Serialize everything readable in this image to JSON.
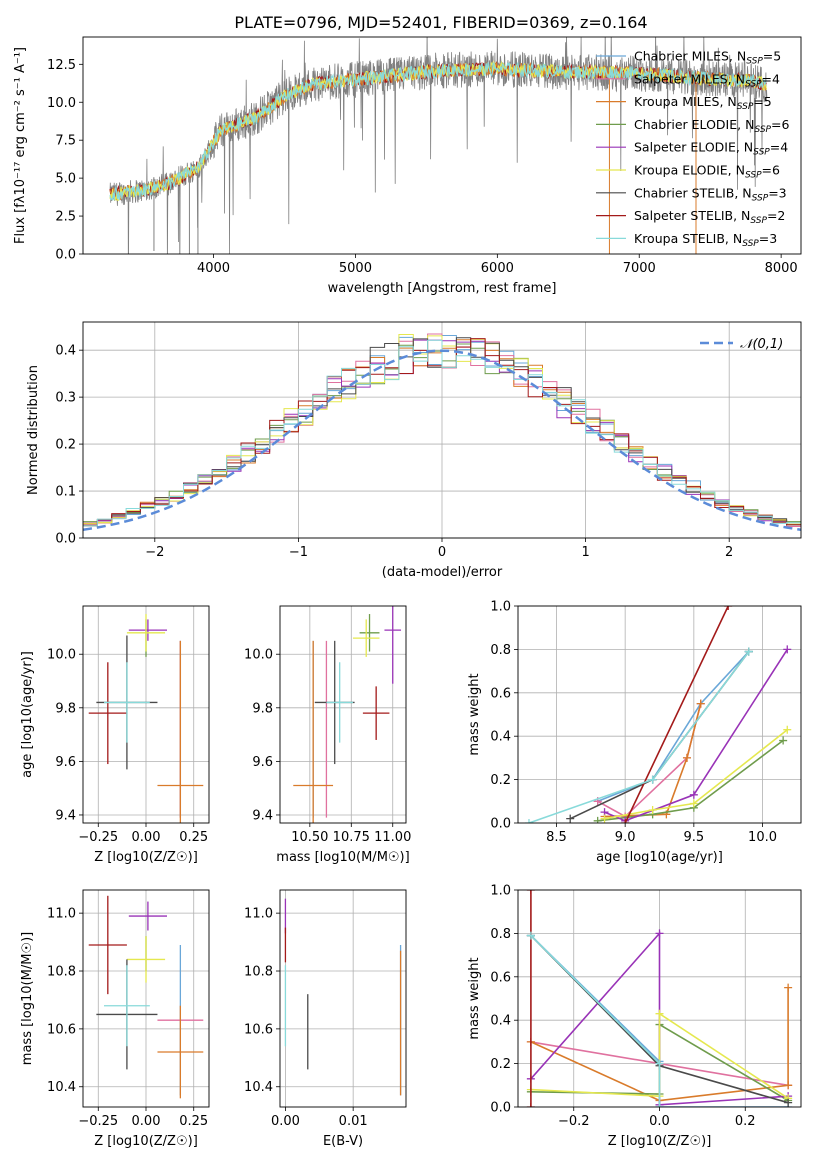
{
  "figure": {
    "title": "PLATE=0796, MJD=52401, FIBERID=0369, z=0.164"
  },
  "models": [
    {
      "key": "cm",
      "name": "Chabrier MILES",
      "nssp": "5",
      "color": "#6aa7d8"
    },
    {
      "key": "sm",
      "name": "Salpeter MILES",
      "nssp": "4",
      "color": "#e0719f"
    },
    {
      "key": "km",
      "name": "Kroupa MILES",
      "nssp": "5",
      "color": "#d97b2b"
    },
    {
      "key": "ce",
      "name": "Chabrier ELODIE",
      "nssp": "6",
      "color": "#6f9c4c"
    },
    {
      "key": "se",
      "name": "Salpeter ELODIE",
      "nssp": "4",
      "color": "#9933b7"
    },
    {
      "key": "ke",
      "name": "Kroupa ELODIE",
      "nssp": "6",
      "color": "#e5e84f"
    },
    {
      "key": "cs",
      "name": "Chabrier STELIB",
      "nssp": "3",
      "color": "#4a4a4a"
    },
    {
      "key": "ss",
      "name": "Salpeter STELIB",
      "nssp": "2",
      "color": "#a31a1a"
    },
    {
      "key": "ks",
      "name": "Kroupa STELIB",
      "nssp": "3",
      "color": "#88dada"
    }
  ],
  "legend_nssp_label": "N",
  "legend_nssp_sub": "SSP",
  "chart_data": [
    {
      "id": "spectrum",
      "type": "line",
      "xlabel": "wavelength [Angstrom, rest frame]",
      "ylabel": "Flux [f_λ 10^-17 erg cm^-2 s^-1 A^-1]",
      "xlim": [
        3080,
        8140
      ],
      "ylim": [
        0,
        14.3
      ],
      "xticks": [
        4000,
        5000,
        6000,
        7000,
        8000
      ],
      "yticks": [
        0.0,
        2.5,
        5.0,
        7.5,
        10.0,
        12.5
      ],
      "grid": false,
      "legend": "right",
      "continuum_x": [
        3270,
        3500,
        3700,
        3900,
        4050,
        4300,
        4500,
        4700,
        5000,
        5300,
        5600,
        6000,
        6500,
        7000,
        7400,
        7800,
        7900
      ],
      "continuum_y": [
        3.9,
        4.2,
        4.7,
        5.8,
        8.1,
        9.0,
        10.4,
        11.2,
        11.5,
        11.8,
        12.1,
        12.2,
        12.0,
        11.9,
        11.6,
        11.4,
        11.1
      ]
    },
    {
      "id": "residuals",
      "type": "line",
      "xlabel": "(data-model)/error",
      "ylabel": "Normed distribution",
      "xlim": [
        -2.5,
        2.5
      ],
      "ylim": [
        0,
        0.46
      ],
      "xticks": [
        -2,
        -1,
        0,
        1,
        2
      ],
      "yticks": [
        0.0,
        0.1,
        0.2,
        0.3,
        0.4
      ],
      "grid": true,
      "legend": "upper right",
      "gauss_label": "𝒩(0,1)",
      "bin_width": 0.1
    },
    {
      "id": "age_vs_Z",
      "type": "scatter",
      "xlabel": "Z [log10(Z/Z☉)]",
      "ylabel": "age  [log10(age/yr)]",
      "xlim": [
        -0.33,
        0.33
      ],
      "ylim": [
        9.37,
        10.18
      ],
      "xticks": [
        -0.25,
        0.0,
        0.25
      ],
      "xticklabels": [
        "−0.25",
        "0.00",
        "0.25"
      ],
      "yticks": [
        9.4,
        9.6,
        9.8,
        10.0
      ],
      "yticklabels": [
        "9.4",
        "9.6",
        "9.8",
        "10.0"
      ],
      "grid": true,
      "points": [
        {
          "m": "cm",
          "x": 0.18,
          "y": 9.72,
          "xe": 0.0,
          "ye": 0.33
        },
        {
          "m": "sm",
          "x": 0.18,
          "y": 9.72,
          "xe": 0.0,
          "ye": 0.33
        },
        {
          "m": "km",
          "x": 0.18,
          "y": 9.51,
          "xe": 0.12,
          "ye": 0.54
        },
        {
          "m": "ce",
          "x": 0.0,
          "y": 10.06,
          "xe": 0.0,
          "ye": 0.07
        },
        {
          "m": "se",
          "x": 0.01,
          "y": 10.09,
          "xe": 0.1,
          "ye": 0.04
        },
        {
          "m": "ke",
          "x": 0.0,
          "y": 10.08,
          "xe": 0.1,
          "ye": 0.07
        },
        {
          "m": "cs",
          "x": -0.1,
          "y": 9.82,
          "xe": 0.16,
          "ye": 0.25
        },
        {
          "m": "ss",
          "x": -0.2,
          "y": 9.78,
          "xe": 0.1,
          "ye": 0.19
        },
        {
          "m": "ks",
          "x": -0.1,
          "y": 9.82,
          "xe": 0.12,
          "ye": 0.15
        }
      ]
    },
    {
      "id": "age_vs_mass",
      "type": "scatter",
      "xlabel": "mass [log10(M/M☉)]",
      "xlim": [
        10.32,
        11.08
      ],
      "ylim": [
        9.37,
        10.18
      ],
      "xticks": [
        10.5,
        10.75,
        11.0
      ],
      "xticklabels": [
        "10.50",
        "10.75",
        "11.00"
      ],
      "yticks": [
        9.4,
        9.6,
        9.8,
        10.0
      ],
      "yticklabels": [
        "9.4",
        "9.6",
        "9.8",
        "10.0"
      ],
      "grid": true,
      "points": [
        {
          "m": "cm",
          "x": 10.52,
          "y": 9.72,
          "xe": 0.0,
          "ye": 0.33
        },
        {
          "m": "sm",
          "x": 10.6,
          "y": 9.72,
          "xe": 0.0,
          "ye": 0.33
        },
        {
          "m": "km",
          "x": 10.52,
          "y": 9.51,
          "xe": 0.12,
          "ye": 0.54
        },
        {
          "m": "ce",
          "x": 10.86,
          "y": 10.08,
          "xe": 0.06,
          "ye": 0.07
        },
        {
          "m": "se",
          "x": 11.0,
          "y": 10.09,
          "xe": 0.05,
          "ye": 0.2
        },
        {
          "m": "ke",
          "x": 10.84,
          "y": 10.06,
          "xe": 0.08,
          "ye": 0.07
        },
        {
          "m": "cs",
          "x": 10.65,
          "y": 9.82,
          "xe": 0.12,
          "ye": 0.23
        },
        {
          "m": "ss",
          "x": 10.9,
          "y": 9.78,
          "xe": 0.08,
          "ye": 0.1
        },
        {
          "m": "ks",
          "x": 10.68,
          "y": 9.82,
          "xe": 0.08,
          "ye": 0.15
        }
      ]
    },
    {
      "id": "weight_vs_age",
      "type": "line",
      "xlabel": "age  [log10(age/yr)]",
      "ylabel": "mass weight",
      "xlim": [
        8.22,
        10.28
      ],
      "ylim": [
        0,
        1.0
      ],
      "xticks": [
        8.5,
        9.0,
        9.5,
        10.0
      ],
      "xticklabels": [
        "8.5",
        "9.0",
        "9.5",
        "10.0"
      ],
      "yticks": [
        0.0,
        0.2,
        0.4,
        0.6,
        0.8,
        1.0
      ],
      "yticklabels": [
        "0.0",
        "0.2",
        "0.4",
        "0.6",
        "0.8",
        "1.0"
      ],
      "grid": true,
      "series": [
        {
          "m": "cm",
          "x": [
            8.8,
            9.2,
            9.55,
            9.9
          ],
          "y": [
            0.1,
            0.2,
            0.55,
            0.79
          ]
        },
        {
          "m": "sm",
          "x": [
            8.8,
            9.0,
            9.45,
            9.55
          ],
          "y": [
            0.1,
            0.03,
            0.3,
            0.55
          ]
        },
        {
          "m": "km",
          "x": [
            8.85,
            9.3,
            9.45,
            9.55
          ],
          "y": [
            0.03,
            0.04,
            0.3,
            0.55
          ]
        },
        {
          "m": "ce",
          "x": [
            8.8,
            9.2,
            9.5,
            10.15
          ],
          "y": [
            0.01,
            0.04,
            0.07,
            0.38
          ]
        },
        {
          "m": "se",
          "x": [
            8.85,
            9.0,
            9.5,
            10.18
          ],
          "y": [
            0.05,
            0.01,
            0.13,
            0.8
          ]
        },
        {
          "m": "ke",
          "x": [
            8.85,
            9.2,
            9.5,
            10.18
          ],
          "y": [
            0.02,
            0.06,
            0.09,
            0.43
          ]
        },
        {
          "m": "cs",
          "x": [
            8.6,
            9.2,
            9.9
          ],
          "y": [
            0.02,
            0.2,
            0.79
          ]
        },
        {
          "m": "ss",
          "x": [
            9.0,
            9.75
          ],
          "y": [
            0.0,
            1.0
          ]
        },
        {
          "m": "ks",
          "x": [
            8.3,
            9.2,
            9.9
          ],
          "y": [
            0.0,
            0.2,
            0.79
          ]
        }
      ]
    },
    {
      "id": "mass_vs_Z",
      "type": "scatter",
      "xlabel": "Z [log10(Z/Z☉)]",
      "ylabel": "mass [log10(M/M☉)]",
      "xlim": [
        -0.33,
        0.33
      ],
      "ylim": [
        10.33,
        11.08
      ],
      "xticks": [
        -0.25,
        0.0,
        0.25
      ],
      "xticklabels": [
        "−0.25",
        "0.00",
        "0.25"
      ],
      "yticks": [
        10.4,
        10.6,
        10.8,
        11.0
      ],
      "yticklabels": [
        "10.4",
        "10.6",
        "10.8",
        "11.0"
      ],
      "grid": true,
      "points": [
        {
          "m": "cm",
          "x": 0.18,
          "y": 10.63,
          "xe": 0.0,
          "ye": 0.26
        },
        {
          "m": "sm",
          "x": 0.18,
          "y": 10.63,
          "xe": 0.12,
          "ye": 0.0
        },
        {
          "m": "km",
          "x": 0.18,
          "y": 10.52,
          "xe": 0.12,
          "ye": 0.16
        },
        {
          "m": "ce",
          "x": 0.0,
          "y": 10.86,
          "xe": 0.0,
          "ye": 0.06
        },
        {
          "m": "se",
          "x": 0.01,
          "y": 10.99,
          "xe": 0.1,
          "ye": 0.05
        },
        {
          "m": "ke",
          "x": 0.0,
          "y": 10.84,
          "xe": 0.1,
          "ye": 0.08
        },
        {
          "m": "cs",
          "x": -0.1,
          "y": 10.65,
          "xe": 0.16,
          "ye": 0.19
        },
        {
          "m": "ss",
          "x": -0.2,
          "y": 10.89,
          "xe": 0.1,
          "ye": 0.17
        },
        {
          "m": "ks",
          "x": -0.1,
          "y": 10.68,
          "xe": 0.12,
          "ye": 0.14
        }
      ]
    },
    {
      "id": "mass_vs_ebv",
      "type": "scatter",
      "xlabel": "E(B-V)",
      "xlim": [
        -0.0008,
        0.0178
      ],
      "ylim": [
        10.33,
        11.08
      ],
      "xticks": [
        0.0,
        0.01
      ],
      "xticklabels": [
        "0.00",
        "0.01"
      ],
      "yticks": [
        10.4,
        10.6,
        10.8,
        11.0
      ],
      "yticklabels": [
        "10.4",
        "10.6",
        "10.8",
        "11.0"
      ],
      "grid": true,
      "points": [
        {
          "m": "cm",
          "x": 0.017,
          "y": 10.63,
          "xe": 0.0,
          "ye": 0.26
        },
        {
          "m": "km",
          "x": 0.017,
          "y": 10.62,
          "xe": 0.0,
          "ye": 0.25
        },
        {
          "m": "se",
          "x": 0.0,
          "y": 10.99,
          "xe": 0.0,
          "ye": 0.06
        },
        {
          "m": "ss",
          "x": 0.0,
          "y": 10.89,
          "xe": 0.0,
          "ye": 0.06
        },
        {
          "m": "ks",
          "x": 0.0,
          "y": 10.68,
          "xe": 0.0,
          "ye": 0.14
        },
        {
          "m": "cs",
          "x": 0.0033,
          "y": 10.59,
          "xe": 0.0,
          "ye": 0.13
        }
      ]
    },
    {
      "id": "weight_vs_Z",
      "type": "line",
      "xlabel": "Z [log10(Z/Z☉)]",
      "ylabel": "mass weight",
      "xlim": [
        -0.33,
        0.33
      ],
      "ylim": [
        0,
        1.0
      ],
      "xticks": [
        -0.2,
        0.0,
        0.2
      ],
      "xticklabels": [
        "−0.2",
        "0.0",
        "0.2"
      ],
      "yticks": [
        0.0,
        0.2,
        0.4,
        0.6,
        0.8,
        1.0
      ],
      "yticklabels": [
        "0.0",
        "0.2",
        "0.4",
        "0.6",
        "0.8",
        "1.0"
      ],
      "grid": true,
      "series": [
        {
          "m": "cm",
          "x": [
            -0.3,
            0.0,
            0.0,
            0.3
          ],
          "y": [
            0.79,
            0.21,
            0.0,
            0.0
          ]
        },
        {
          "m": "sm",
          "x": [
            -0.3,
            0.0,
            0.3
          ],
          "y": [
            0.3,
            0.2,
            0.1
          ]
        },
        {
          "m": "km",
          "x": [
            -0.3,
            0.0,
            0.3,
            0.3
          ],
          "y": [
            0.3,
            0.03,
            0.1,
            0.55
          ]
        },
        {
          "m": "ce",
          "x": [
            -0.3,
            0.0,
            0.0,
            0.3
          ],
          "y": [
            0.07,
            0.06,
            0.38,
            0.03
          ]
        },
        {
          "m": "se",
          "x": [
            -0.3,
            0.0,
            0.0,
            0.3
          ],
          "y": [
            0.13,
            0.8,
            0.01,
            0.05
          ]
        },
        {
          "m": "ke",
          "x": [
            -0.3,
            0.0,
            0.0,
            0.3
          ],
          "y": [
            0.08,
            0.05,
            0.43,
            0.04
          ]
        },
        {
          "m": "cs",
          "x": [
            -0.3,
            0.0,
            0.3
          ],
          "y": [
            0.79,
            0.19,
            0.02
          ]
        },
        {
          "m": "ss",
          "x": [
            -0.3,
            -0.3
          ],
          "y": [
            0.0,
            1.0
          ]
        },
        {
          "m": "ks",
          "x": [
            -0.3,
            0.0,
            0.0
          ],
          "y": [
            0.79,
            0.2,
            0.0
          ]
        }
      ]
    }
  ]
}
